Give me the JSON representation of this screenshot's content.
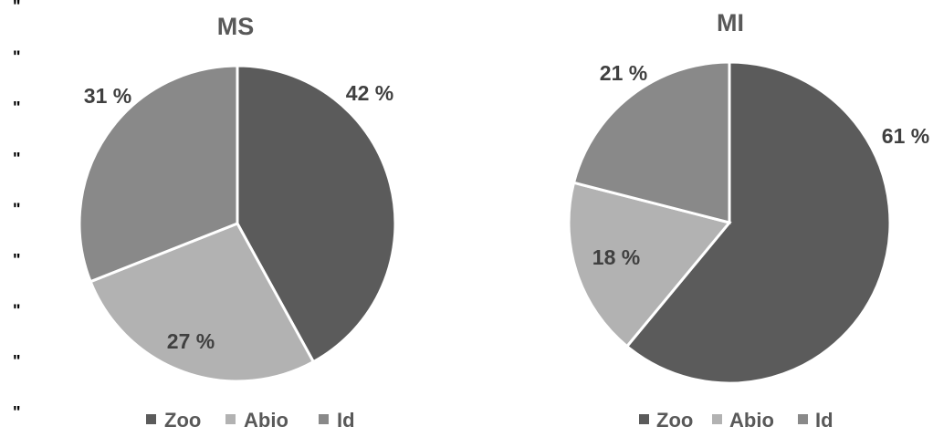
{
  "margin_marks": [
    "\"",
    "\"",
    "\"",
    "\"",
    "\"",
    "\"",
    "\"",
    "\"",
    "\""
  ],
  "colors": {
    "Zoo": "#5b5b5b",
    "Abio": "#b2b2b2",
    "Id": "#898989"
  },
  "chart_data": [
    {
      "type": "pie",
      "title": "MS",
      "categories": [
        "Zoo",
        "Abio",
        "Id"
      ],
      "values": [
        42,
        27,
        31
      ],
      "labels": [
        "42 %",
        "27 %",
        "31 %"
      ],
      "legend": "bottom"
    },
    {
      "type": "pie",
      "title": "MI",
      "categories": [
        "Zoo",
        "Abio",
        "Id"
      ],
      "values": [
        61,
        18,
        21
      ],
      "labels": [
        "61 %",
        "18 %",
        "21 %"
      ],
      "legend": "bottom"
    }
  ]
}
